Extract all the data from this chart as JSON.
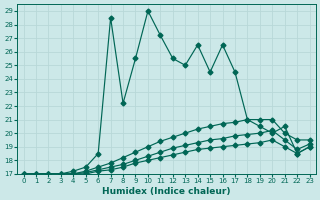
{
  "xlabel": "Humidex (Indice chaleur)",
  "bg_color": "#cce8e8",
  "grid_color": "#b8d8d8",
  "line_color": "#006655",
  "xlim": [
    -0.5,
    23.5
  ],
  "ylim": [
    17,
    29.5
  ],
  "xticks": [
    0,
    1,
    2,
    3,
    4,
    5,
    6,
    7,
    8,
    9,
    10,
    11,
    12,
    13,
    14,
    15,
    16,
    17,
    18,
    19,
    20,
    21,
    22,
    23
  ],
  "yticks": [
    17,
    18,
    19,
    20,
    21,
    22,
    23,
    24,
    25,
    26,
    27,
    28,
    29
  ],
  "main_line_y": [
    17.0,
    17.0,
    17.0,
    17.0,
    17.2,
    17.5,
    18.5,
    28.5,
    22.2,
    25.5,
    29.0,
    27.2,
    25.5,
    25.0,
    26.5,
    24.5,
    26.5,
    24.5,
    21.0,
    20.5,
    20.0,
    20.5,
    18.5,
    19.0
  ],
  "flat1_y": [
    17.0,
    17.0,
    17.0,
    17.0,
    17.0,
    17.0,
    17.2,
    17.3,
    17.5,
    17.8,
    18.0,
    18.2,
    18.4,
    18.6,
    18.8,
    18.9,
    19.0,
    19.1,
    19.2,
    19.3,
    19.5,
    19.0,
    18.5,
    19.0
  ],
  "flat2_y": [
    17.0,
    17.0,
    17.0,
    17.0,
    17.0,
    17.1,
    17.3,
    17.5,
    17.7,
    18.0,
    18.3,
    18.6,
    18.9,
    19.1,
    19.3,
    19.5,
    19.6,
    19.8,
    19.9,
    20.0,
    20.2,
    19.5,
    18.8,
    19.2
  ],
  "flat3_y": [
    17.0,
    17.0,
    17.0,
    17.0,
    17.0,
    17.2,
    17.5,
    17.8,
    18.2,
    18.6,
    19.0,
    19.4,
    19.7,
    20.0,
    20.3,
    20.5,
    20.7,
    20.8,
    21.0,
    21.0,
    21.0,
    20.0,
    19.5,
    19.5
  ]
}
